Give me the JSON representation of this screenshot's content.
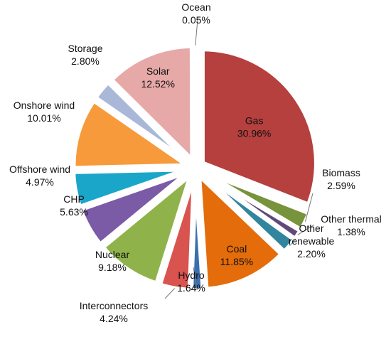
{
  "chart_data": {
    "type": "pie",
    "title": "",
    "exploded": true,
    "slices": [
      {
        "name": "Gas",
        "value": 30.96,
        "label_value": "30.96%",
        "color": "#b5403e"
      },
      {
        "name": "Biomass",
        "value": 2.59,
        "label_value": "2.59%",
        "color": "#77933c"
      },
      {
        "name": "Other thermal",
        "value": 1.38,
        "label_value": "1.38%",
        "color": "#604a7b"
      },
      {
        "name": "Other renewable",
        "value": 2.2,
        "label_value": "2.20%",
        "color": "#31859c"
      },
      {
        "name": "Coal",
        "value": 11.85,
        "label_value": "11.85%",
        "color": "#e46c0a"
      },
      {
        "name": "Hydro",
        "value": 1.64,
        "label_value": "1.64%",
        "color": "#3a6fb0"
      },
      {
        "name": "Interconnectors",
        "value": 4.24,
        "label_value": "4.24%",
        "color": "#d9534f"
      },
      {
        "name": "Nuclear",
        "value": 9.18,
        "label_value": "9.18%",
        "color": "#8fb34a"
      },
      {
        "name": "CHP",
        "value": 5.63,
        "label_value": "5.63%",
        "color": "#7b5aa6"
      },
      {
        "name": "Offshore wind",
        "value": 4.97,
        "label_value": "4.97%",
        "color": "#1aa6c8"
      },
      {
        "name": "Onshore wind",
        "value": 10.01,
        "label_value": "10.01%",
        "color": "#f79a3b"
      },
      {
        "name": "Storage",
        "value": 2.8,
        "label_value": "2.80%",
        "color": "#a9b8d9"
      },
      {
        "name": "Solar",
        "value": 12.52,
        "label_value": "12.52%",
        "color": "#e6a9a8"
      },
      {
        "name": "Ocean",
        "value": 0.05,
        "label_value": "0.05%",
        "color": "#3a6fb0"
      }
    ]
  }
}
